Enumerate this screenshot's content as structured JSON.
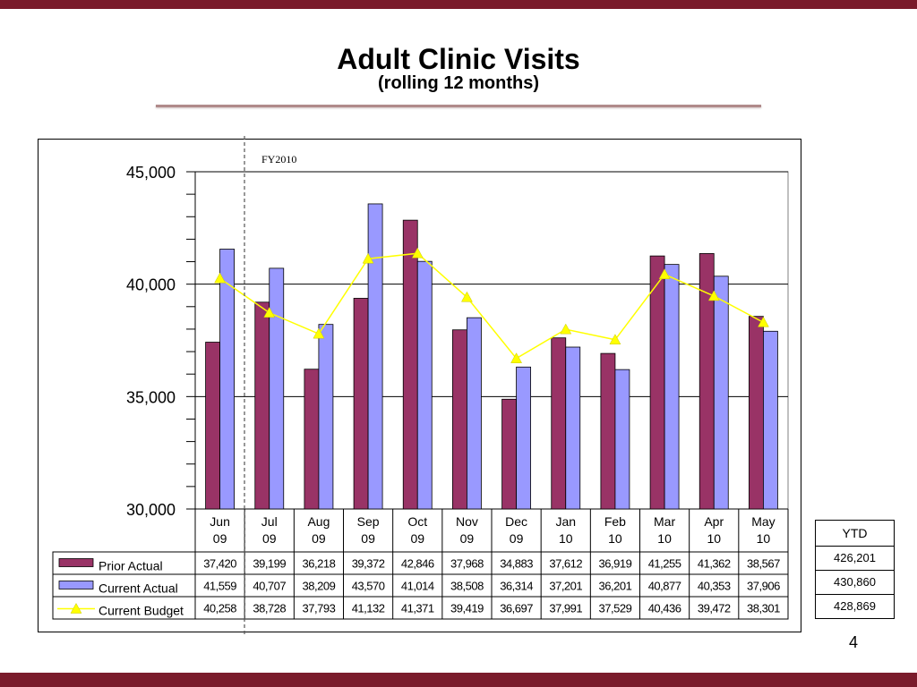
{
  "slide": {
    "title": "Adult Clinic Visits",
    "subtitle": "(rolling 12 months)",
    "page_number": "4",
    "colors": {
      "bar_accent": "#7a1b2b"
    }
  },
  "ytd": {
    "header": "YTD",
    "values": [
      "426,201",
      "430,860",
      "428,869"
    ]
  },
  "chart_data": {
    "type": "bar",
    "annotation": "FY2010",
    "categories": [
      [
        "Jun",
        "09"
      ],
      [
        "Jul",
        "09"
      ],
      [
        "Aug",
        "09"
      ],
      [
        "Sep",
        "09"
      ],
      [
        "Oct",
        "09"
      ],
      [
        "Nov",
        "09"
      ],
      [
        "Dec",
        "09"
      ],
      [
        "Jan",
        "10"
      ],
      [
        "Feb",
        "10"
      ],
      [
        "Mar",
        "10"
      ],
      [
        "Apr",
        "10"
      ],
      [
        "May",
        "10"
      ]
    ],
    "ylim": [
      30000,
      45000
    ],
    "yticks": [
      "45,000",
      "40,000",
      "35,000",
      "30,000"
    ],
    "ytick_values": [
      45000,
      40000,
      35000,
      30000
    ],
    "grid": true,
    "series": [
      {
        "name": "Prior Actual",
        "kind": "bar",
        "color": "#993366",
        "values": [
          37420,
          39199,
          36218,
          39372,
          42846,
          37968,
          34883,
          37612,
          36919,
          41255,
          41362,
          38567
        ],
        "labels": [
          "37,420",
          "39,199",
          "36,218",
          "39,372",
          "42,846",
          "37,968",
          "34,883",
          "37,612",
          "36,919",
          "41,255",
          "41,362",
          "38,567"
        ]
      },
      {
        "name": "Current Actual",
        "kind": "bar",
        "color": "#9999ff",
        "values": [
          41559,
          40707,
          38209,
          43570,
          41014,
          38508,
          36314,
          37201,
          36201,
          40877,
          40353,
          37906
        ],
        "labels": [
          "41,559",
          "40,707",
          "38,209",
          "43,570",
          "41,014",
          "38,508",
          "36,314",
          "37,201",
          "36,201",
          "40,877",
          "40,353",
          "37,906"
        ]
      },
      {
        "name": "Current Budget",
        "kind": "line",
        "color": "#ffff00",
        "values": [
          40258,
          38728,
          37793,
          41132,
          41371,
          39419,
          36697,
          37991,
          37529,
          40436,
          39472,
          38301
        ],
        "labels": [
          "40,258",
          "38,728",
          "37,793",
          "41,132",
          "41,371",
          "39,419",
          "36,697",
          "37,991",
          "37,529",
          "40,436",
          "39,472",
          "38,301"
        ]
      }
    ]
  }
}
